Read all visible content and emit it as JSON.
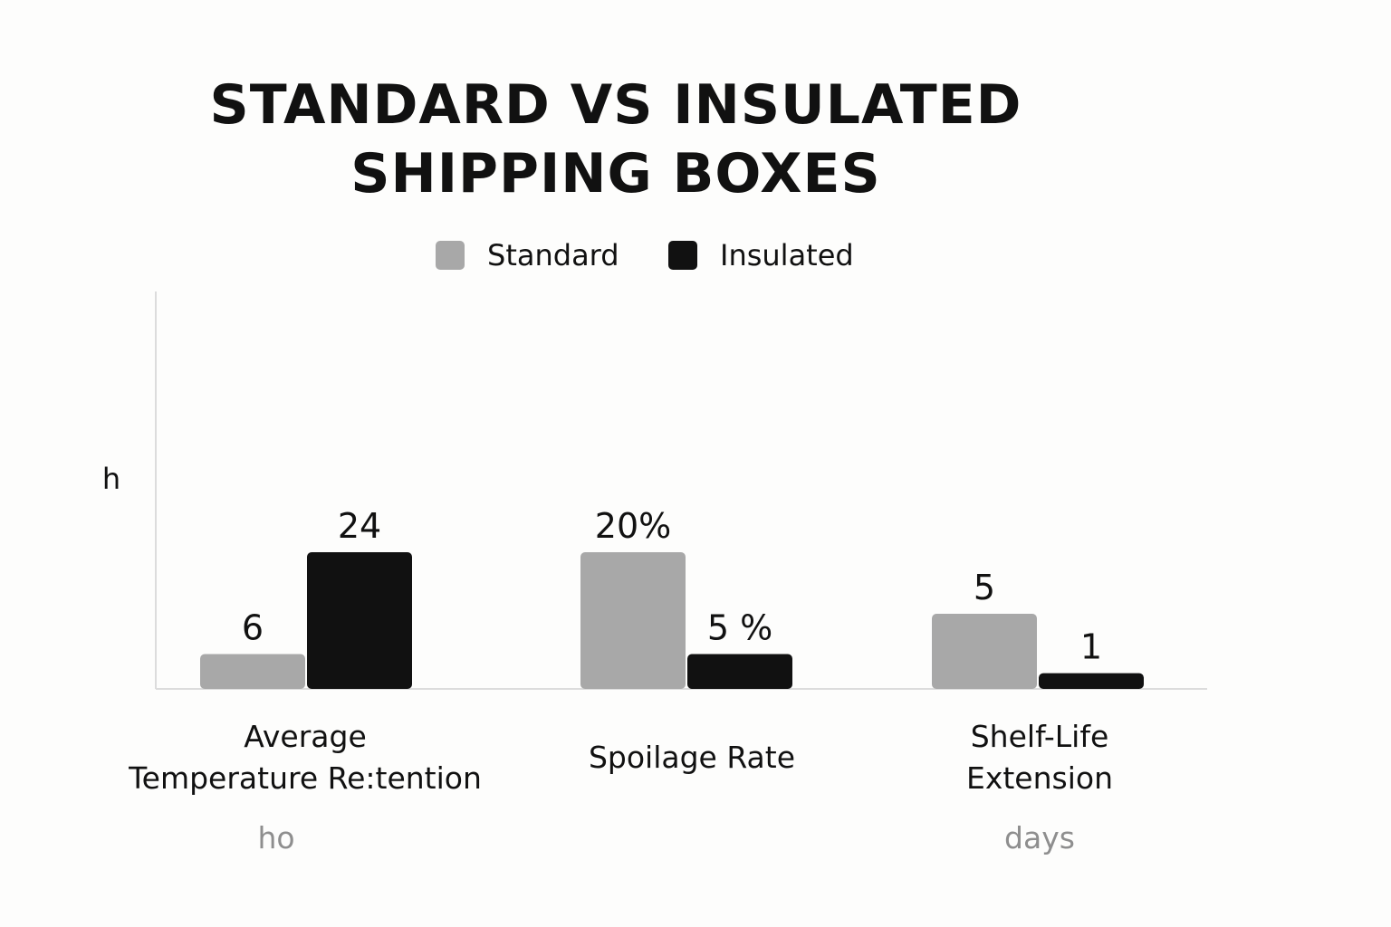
{
  "chart_data": {
    "type": "bar",
    "title_lines": [
      "STANDARD VS INSULATED",
      "SHIPPING BOXES"
    ],
    "ylabel": "h",
    "legend_position": "top-center",
    "grid": false,
    "categories": [
      {
        "lines": [
          "Average",
          "Temperature Re:tention"
        ],
        "unit": "ho"
      },
      {
        "lines": [
          "Spoilage Rate"
        ],
        "unit": ""
      },
      {
        "lines": [
          "Shelf-Life",
          "Extension"
        ],
        "unit": "days"
      }
    ],
    "series": [
      {
        "name": "Standard",
        "color": "#a8a8a8",
        "values": [
          6,
          20,
          5
        ],
        "labels": [
          "6",
          "20%",
          "5"
        ]
      },
      {
        "name": "Insulated",
        "color": "#111111",
        "values": [
          24,
          5,
          1
        ],
        "labels": [
          "24",
          "5 %",
          "1"
        ]
      }
    ]
  }
}
